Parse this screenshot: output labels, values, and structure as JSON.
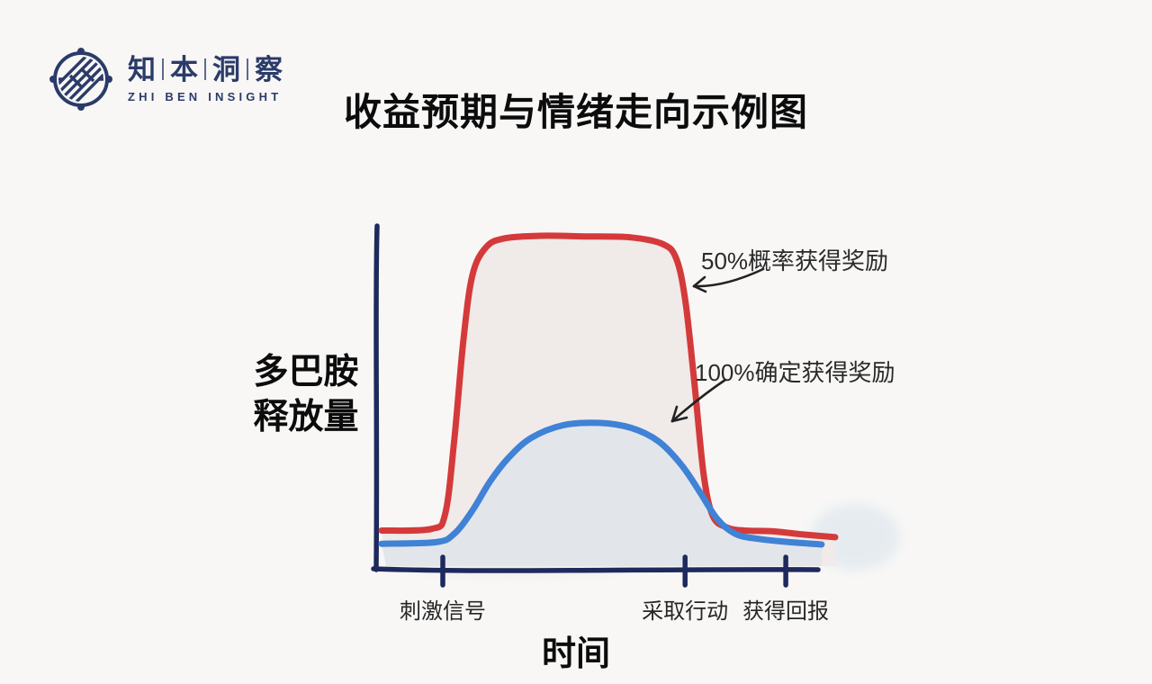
{
  "page": {
    "background": "#f8f7f6"
  },
  "logo": {
    "name_chars": [
      "知",
      "本",
      "洞",
      "察"
    ],
    "subtitle": "ZHI BEN INSIGHT",
    "color": "#2b3b69"
  },
  "title": "收益预期与情绪走向示例图",
  "chart_data": {
    "type": "line",
    "title": "收益预期与情绪走向示例图",
    "xlabel": "时间",
    "ylabel": "多巴胺释放量",
    "ylabel_lines": [
      "多巴胺",
      "释放量"
    ],
    "x_unit": "relative time 0-100 (unlabeled hand-drawn axis)",
    "y_unit": "relative dopamine release 0-100 (unlabeled hand-drawn axis)",
    "grid": false,
    "legend_position": "inline-annotations",
    "axis_color": "#1e2a5c",
    "text_color": "#2a2a2a",
    "x_ticks": [
      {
        "x": 13.5,
        "label": "刺激信号"
      },
      {
        "x": 66.9,
        "label": "采取行动"
      },
      {
        "x": 89.1,
        "label": "获得回报"
      }
    ],
    "series": [
      {
        "name": "50%概率获得奖励",
        "color": "#d43a3a",
        "fill": "#f0eae9",
        "points": [
          [
            0,
            11
          ],
          [
            11,
            11.5
          ],
          [
            14,
            16
          ],
          [
            16,
            38
          ],
          [
            18,
            68
          ],
          [
            20,
            88
          ],
          [
            23,
            96.5
          ],
          [
            27,
            99.2
          ],
          [
            35,
            100
          ],
          [
            45,
            99.8
          ],
          [
            55,
            99.5
          ],
          [
            62,
            97.5
          ],
          [
            65,
            93
          ],
          [
            67,
            80
          ],
          [
            69,
            55
          ],
          [
            71,
            28
          ],
          [
            73,
            15.5
          ],
          [
            76,
            12
          ],
          [
            80,
            11
          ],
          [
            86,
            10.8
          ],
          [
            93,
            9.8
          ],
          [
            100,
            9
          ]
        ]
      },
      {
        "name": "100%确定获得奖励",
        "color": "#3f82d6",
        "fill": "#e2e6ea",
        "points": [
          [
            0,
            7
          ],
          [
            12,
            7.5
          ],
          [
            16,
            10
          ],
          [
            20,
            17
          ],
          [
            24,
            26
          ],
          [
            28,
            33
          ],
          [
            33,
            39
          ],
          [
            40,
            42.8
          ],
          [
            48,
            43.5
          ],
          [
            55,
            42
          ],
          [
            61,
            38
          ],
          [
            66,
            31
          ],
          [
            70,
            23
          ],
          [
            74,
            14.5
          ],
          [
            78,
            10
          ],
          [
            83,
            8.5
          ],
          [
            90,
            7.5
          ],
          [
            97,
            6.8
          ]
        ]
      }
    ]
  }
}
